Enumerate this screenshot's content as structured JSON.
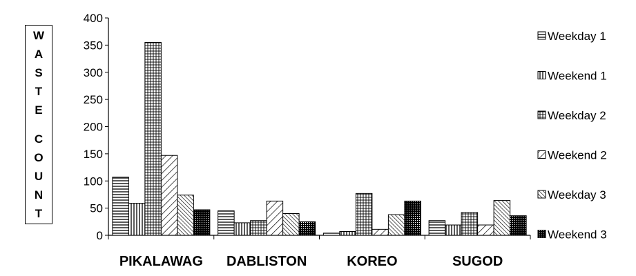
{
  "chart_data": {
    "type": "bar",
    "title": "",
    "ylabel": "WASTE COUNT",
    "xlabel": "",
    "ylim": [
      0,
      400
    ],
    "yticks": [
      0,
      50,
      100,
      150,
      200,
      250,
      300,
      350,
      400
    ],
    "categories": [
      "PIKALAWAG",
      "DABLISTON",
      "KOREO",
      "SUGOD"
    ],
    "series": [
      {
        "name": "Weekday 1",
        "pattern": "hlines",
        "values": [
          107,
          45,
          4,
          27
        ]
      },
      {
        "name": "Weekend 1",
        "pattern": "vlines",
        "values": [
          59,
          23,
          7,
          19
        ]
      },
      {
        "name": "Weekday 2",
        "pattern": "grid",
        "values": [
          355,
          27,
          77,
          42
        ]
      },
      {
        "name": "Weekend 2",
        "pattern": "diag-wide",
        "values": [
          147,
          63,
          11,
          19
        ]
      },
      {
        "name": "Weekday 3",
        "pattern": "diag-dense",
        "values": [
          74,
          40,
          38,
          64
        ]
      },
      {
        "name": "Weekend 3",
        "pattern": "dots",
        "values": [
          47,
          25,
          63,
          36
        ]
      }
    ],
    "legend_position": "right",
    "grid": false,
    "colors": {
      "ink": "#000000",
      "background": "#ffffff"
    }
  }
}
